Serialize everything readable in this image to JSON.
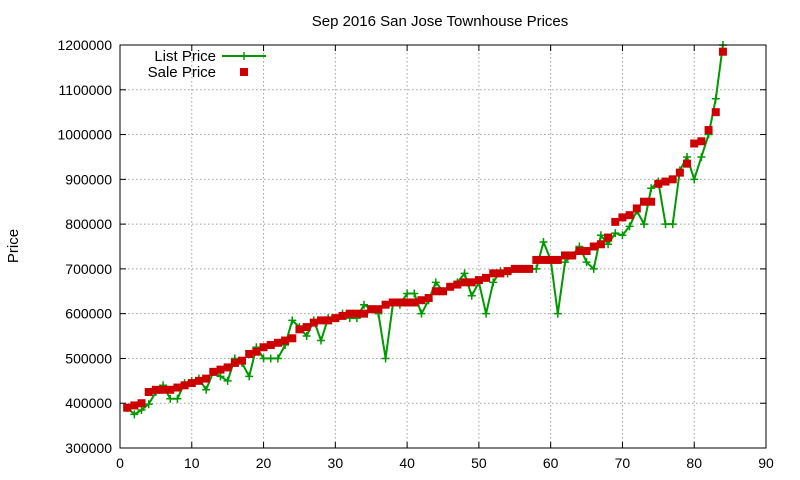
{
  "chart_data": {
    "type": "line",
    "title": "Sep 2016 San Jose Townhouse Prices",
    "xlabel": "",
    "ylabel": "Price",
    "xlim": [
      0,
      90
    ],
    "ylim": [
      300000,
      1200000
    ],
    "xticks": [
      0,
      10,
      20,
      30,
      40,
      50,
      60,
      70,
      80,
      90
    ],
    "yticks": [
      300000,
      400000,
      500000,
      600000,
      700000,
      800000,
      900000,
      1000000,
      1100000,
      1200000
    ],
    "grid": true,
    "legend_position": "top-left",
    "x": [
      1,
      2,
      3,
      4,
      5,
      6,
      7,
      8,
      9,
      10,
      11,
      12,
      13,
      14,
      15,
      16,
      17,
      18,
      19,
      20,
      21,
      22,
      23,
      24,
      25,
      26,
      27,
      28,
      29,
      30,
      31,
      32,
      33,
      34,
      35,
      36,
      37,
      38,
      39,
      40,
      41,
      42,
      43,
      44,
      45,
      46,
      47,
      48,
      49,
      50,
      51,
      52,
      53,
      54,
      55,
      56,
      57,
      58,
      59,
      60,
      61,
      62,
      63,
      64,
      65,
      66,
      67,
      68,
      69,
      70,
      71,
      72,
      73,
      74,
      75,
      76,
      77,
      78,
      79,
      80,
      81,
      82,
      83,
      84
    ],
    "series": [
      {
        "name": "List Price",
        "style": "linespoints",
        "marker": "plus",
        "color": "#009900",
        "values": [
          390000,
          375000,
          385000,
          398000,
          425000,
          440000,
          410000,
          410000,
          445000,
          450000,
          455000,
          430000,
          470000,
          460000,
          450000,
          500000,
          490000,
          460000,
          525000,
          500000,
          500000,
          500000,
          530000,
          585000,
          570000,
          550000,
          585000,
          540000,
          590000,
          590000,
          600000,
          590000,
          590000,
          620000,
          610000,
          600000,
          500000,
          620000,
          620000,
          645000,
          645000,
          600000,
          630000,
          670000,
          650000,
          660000,
          670000,
          690000,
          640000,
          670000,
          600000,
          670000,
          695000,
          690000,
          700000,
          700000,
          700000,
          700000,
          760000,
          720000,
          600000,
          715000,
          730000,
          750000,
          715000,
          700000,
          775000,
          755000,
          780000,
          775000,
          795000,
          830000,
          800000,
          880000,
          895000,
          800000,
          800000,
          920000,
          950000,
          900000,
          950000,
          1000000,
          1080000,
          1200000
        ]
      },
      {
        "name": "Sale Price",
        "style": "points",
        "marker": "square",
        "color": "#cc0000",
        "values": [
          390000,
          395000,
          400000,
          425000,
          430000,
          430000,
          430000,
          435000,
          440000,
          445000,
          450000,
          455000,
          470000,
          475000,
          480000,
          490000,
          495000,
          510000,
          515000,
          525000,
          530000,
          535000,
          540000,
          545000,
          565000,
          570000,
          580000,
          585000,
          585000,
          590000,
          595000,
          600000,
          600000,
          600000,
          610000,
          610000,
          620000,
          625000,
          625000,
          625000,
          625000,
          630000,
          635000,
          650000,
          650000,
          660000,
          665000,
          670000,
          670000,
          675000,
          680000,
          690000,
          690000,
          695000,
          700000,
          700000,
          700000,
          720000,
          720000,
          720000,
          720000,
          730000,
          730000,
          740000,
          740000,
          750000,
          755000,
          770000,
          805000,
          815000,
          820000,
          835000,
          850000,
          850000,
          890000,
          895000,
          900000,
          915000,
          935000,
          980000,
          985000,
          1010000,
          1050000,
          1185000
        ]
      }
    ]
  }
}
